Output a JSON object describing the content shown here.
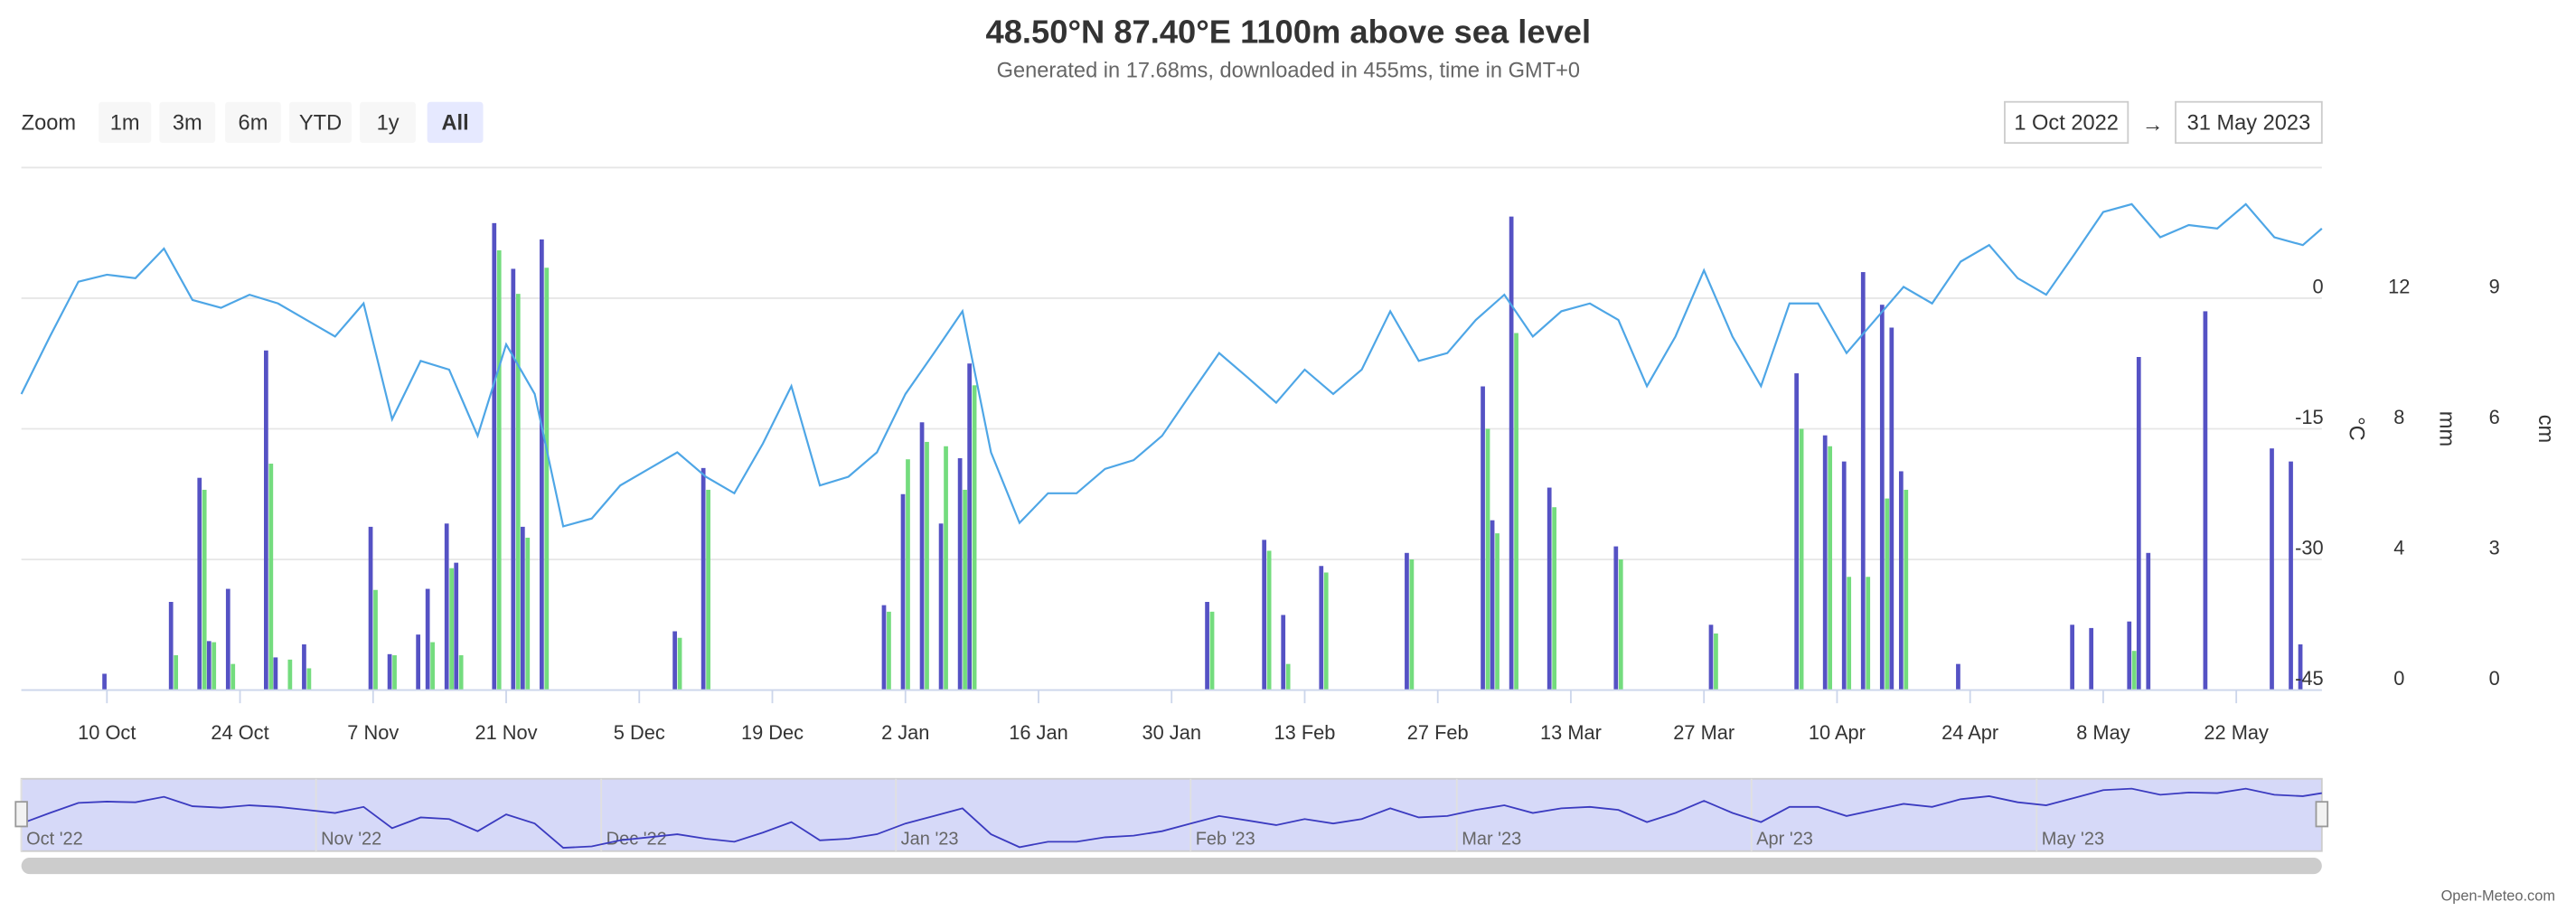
{
  "chart_data": {
    "type": "combo",
    "title": "48.50°N 87.40°E 1100m above sea level",
    "subtitle": "Generated in 17.68ms, downloaded in 455ms, time in GMT+0",
    "xlim": [
      "2022-10-01",
      "2023-05-31"
    ],
    "xticks": [
      {
        "value": "2022-10-10",
        "label": "10 Oct"
      },
      {
        "value": "2022-10-24",
        "label": "24 Oct"
      },
      {
        "value": "2022-11-07",
        "label": "7 Nov"
      },
      {
        "value": "2022-11-21",
        "label": "21 Nov"
      },
      {
        "value": "2022-12-05",
        "label": "5 Dec"
      },
      {
        "value": "2022-12-19",
        "label": "19 Dec"
      },
      {
        "value": "2023-01-02",
        "label": "2 Jan"
      },
      {
        "value": "2023-01-16",
        "label": "16 Jan"
      },
      {
        "value": "2023-01-30",
        "label": "30 Jan"
      },
      {
        "value": "2023-02-13",
        "label": "13 Feb"
      },
      {
        "value": "2023-02-27",
        "label": "27 Feb"
      },
      {
        "value": "2023-03-13",
        "label": "13 Mar"
      },
      {
        "value": "2023-03-27",
        "label": "27 Mar"
      },
      {
        "value": "2023-04-10",
        "label": "10 Apr"
      },
      {
        "value": "2023-04-24",
        "label": "24 Apr"
      },
      {
        "value": "2023-05-08",
        "label": "8 May"
      },
      {
        "value": "2023-05-22",
        "label": "22 May"
      }
    ],
    "ylim": [
      -45,
      15
    ],
    "yticks": [
      -45,
      -30,
      -15,
      0
    ],
    "ylabel": "°C",
    "y2lim": [
      0,
      16
    ],
    "y2ticks": [
      0,
      4,
      8,
      12
    ],
    "y2label": "mm",
    "y3lim": [
      0,
      12
    ],
    "y3ticks": [
      0,
      3,
      6,
      9
    ],
    "y3label": "cm",
    "grid": true,
    "series": [
      {
        "type": "line",
        "axis": "y",
        "color": "#4ea6e6",
        "x": [
          "2022-10-01",
          "2022-10-04",
          "2022-10-07",
          "2022-10-10",
          "2022-10-13",
          "2022-10-16",
          "2022-10-19",
          "2022-10-22",
          "2022-10-25",
          "2022-10-28",
          "2022-10-31",
          "2022-11-03",
          "2022-11-06",
          "2022-11-09",
          "2022-11-12",
          "2022-11-15",
          "2022-11-18",
          "2022-11-21",
          "2022-11-24",
          "2022-11-27",
          "2022-11-30",
          "2022-12-03",
          "2022-12-06",
          "2022-12-09",
          "2022-12-12",
          "2022-12-15",
          "2022-12-18",
          "2022-12-21",
          "2022-12-24",
          "2022-12-27",
          "2022-12-30",
          "2023-01-02",
          "2023-01-05",
          "2023-01-08",
          "2023-01-11",
          "2023-01-14",
          "2023-01-17",
          "2023-01-20",
          "2023-01-23",
          "2023-01-26",
          "2023-01-29",
          "2023-02-01",
          "2023-02-04",
          "2023-02-07",
          "2023-02-10",
          "2023-02-13",
          "2023-02-16",
          "2023-02-19",
          "2023-02-22",
          "2023-02-25",
          "2023-02-28",
          "2023-03-03",
          "2023-03-06",
          "2023-03-09",
          "2023-03-12",
          "2023-03-15",
          "2023-03-18",
          "2023-03-21",
          "2023-03-24",
          "2023-03-27",
          "2023-03-30",
          "2023-04-02",
          "2023-04-05",
          "2023-04-08",
          "2023-04-11",
          "2023-04-14",
          "2023-04-17",
          "2023-04-20",
          "2023-04-23",
          "2023-04-26",
          "2023-04-29",
          "2023-05-02",
          "2023-05-05",
          "2023-05-08",
          "2023-05-11",
          "2023-05-14",
          "2023-05-17",
          "2023-05-20",
          "2023-05-23",
          "2023-05-26",
          "2023-05-29",
          "2023-05-31"
        ],
        "values": [
          -11,
          -4.4,
          1.9,
          2.7,
          2.3,
          5.7,
          -0.2,
          -1.1,
          0.4,
          -0.6,
          -2.5,
          -4.4,
          -0.6,
          -13.9,
          -7.2,
          -8.2,
          -15.8,
          -5.3,
          -11,
          -26.2,
          -25.3,
          -21.5,
          -19.6,
          -17.7,
          -20.5,
          -22.4,
          -16.7,
          -10.1,
          -21.5,
          -20.5,
          -17.7,
          -11,
          -6.3,
          -1.5,
          -17.7,
          -25.8,
          -22.4,
          -22.4,
          -19.6,
          -18.6,
          -15.8,
          -11,
          -6.3,
          -9.1,
          -12,
          -8.2,
          -11,
          -8.2,
          -1.5,
          -7.2,
          -6.3,
          -2.5,
          0.4,
          -4.4,
          -1.5,
          -0.6,
          -2.5,
          -10.1,
          -4.4,
          3.2,
          -4.4,
          -10.1,
          -0.6,
          -0.6,
          -6.3,
          -2.5,
          1.3,
          -0.6,
          4.2,
          6.1,
          2.3,
          0.4,
          5.1,
          9.9,
          10.8,
          7,
          8.4,
          8,
          10.8,
          7,
          6.1,
          8
        ]
      },
      {
        "type": "column",
        "axis": "y2",
        "color": "#5552c4",
        "x": [
          "2022-10-10",
          "2022-10-17",
          "2022-10-20",
          "2022-10-21",
          "2022-10-23",
          "2022-10-27",
          "2022-10-28",
          "2022-10-31",
          "2022-11-07",
          "2022-11-09",
          "2022-11-12",
          "2022-11-13",
          "2022-11-15",
          "2022-11-16",
          "2022-11-20",
          "2022-11-22",
          "2022-11-23",
          "2022-11-25",
          "2022-12-09",
          "2022-12-12",
          "2022-12-31",
          "2023-01-02",
          "2023-01-04",
          "2023-01-06",
          "2023-01-08",
          "2023-01-09",
          "2023-02-03",
          "2023-02-09",
          "2023-02-11",
          "2023-02-15",
          "2023-02-24",
          "2023-03-04",
          "2023-03-05",
          "2023-03-07",
          "2023-03-11",
          "2023-03-18",
          "2023-03-28",
          "2023-04-06",
          "2023-04-09",
          "2023-04-11",
          "2023-04-13",
          "2023-04-15",
          "2023-04-16",
          "2023-04-17",
          "2023-04-23",
          "2023-05-05",
          "2023-05-07",
          "2023-05-11",
          "2023-05-12",
          "2023-05-13",
          "2023-05-19",
          "2023-05-26",
          "2023-05-28",
          "2023-05-29"
        ],
        "values": [
          0.5,
          2.7,
          6.5,
          1.5,
          3.1,
          10.4,
          1.0,
          1.4,
          5.0,
          1.1,
          1.7,
          3.1,
          5.1,
          3.9,
          14.3,
          12.9,
          5.0,
          13.8,
          1.8,
          6.8,
          2.6,
          6.0,
          8.2,
          5.1,
          7.1,
          10.0,
          2.7,
          4.6,
          2.3,
          3.8,
          4.2,
          9.3,
          5.2,
          14.5,
          6.2,
          4.4,
          2.0,
          9.7,
          7.8,
          7.0,
          12.8,
          11.8,
          11.1,
          6.7,
          0.8,
          2.0,
          1.9,
          2.1,
          10.2,
          4.2,
          11.6,
          7.4,
          7.0,
          1.4
        ]
      },
      {
        "type": "column",
        "axis": "y3",
        "color": "#74dc7e",
        "x": [
          "2022-10-17",
          "2022-10-20",
          "2022-10-21",
          "2022-10-23",
          "2022-10-27",
          "2022-10-29",
          "2022-10-31",
          "2022-11-07",
          "2022-11-09",
          "2022-11-13",
          "2022-11-15",
          "2022-11-16",
          "2022-11-20",
          "2022-11-22",
          "2022-11-23",
          "2022-11-25",
          "2022-12-09",
          "2022-12-12",
          "2022-12-31",
          "2023-01-02",
          "2023-01-04",
          "2023-01-06",
          "2023-01-08",
          "2023-01-09",
          "2023-02-03",
          "2023-02-09",
          "2023-02-11",
          "2023-02-15",
          "2023-02-24",
          "2023-03-04",
          "2023-03-05",
          "2023-03-07",
          "2023-03-11",
          "2023-03-18",
          "2023-03-28",
          "2023-04-06",
          "2023-04-09",
          "2023-04-11",
          "2023-04-13",
          "2023-04-15",
          "2023-04-17",
          "2023-05-11"
        ],
        "values": [
          0.8,
          4.6,
          1.1,
          0.6,
          5.2,
          0.7,
          0.5,
          2.3,
          0.8,
          1.1,
          2.8,
          0.8,
          10.1,
          9.1,
          3.5,
          9.7,
          1.2,
          4.6,
          1.8,
          5.3,
          5.7,
          5.6,
          4.6,
          7.0,
          1.8,
          3.2,
          0.6,
          2.7,
          3.0,
          6.0,
          3.6,
          8.2,
          4.2,
          3.0,
          1.3,
          6.0,
          5.6,
          2.6,
          2.6,
          4.4,
          4.6,
          0.9
        ]
      }
    ],
    "navigator": {
      "color": "#3b3bc0",
      "xticks": [
        {
          "value": "2022-10-01",
          "label": "Oct '22"
        },
        {
          "value": "2022-11-01",
          "label": "Nov '22"
        },
        {
          "value": "2022-12-01",
          "label": "Dec '22"
        },
        {
          "value": "2023-01-01",
          "label": "Jan '23"
        },
        {
          "value": "2023-02-01",
          "label": "Feb '23"
        },
        {
          "value": "2023-03-01",
          "label": "Mar '23"
        },
        {
          "value": "2023-04-01",
          "label": "Apr '23"
        },
        {
          "value": "2023-05-01",
          "label": "May '23"
        }
      ]
    }
  },
  "range_selector": {
    "label": "Zoom",
    "buttons": [
      "1m",
      "3m",
      "6m",
      "YTD",
      "1y",
      "All"
    ],
    "selected": 5,
    "from": "1 Oct 2022",
    "separator": "→",
    "to": "31 May 2023"
  },
  "credits": "Open-Meteo.com"
}
